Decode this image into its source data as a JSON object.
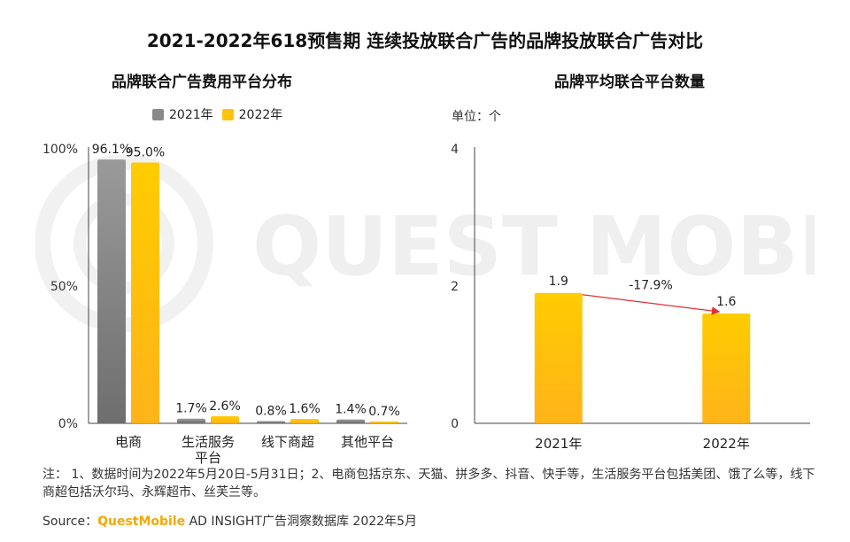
{
  "title": "2021-2022年618预售期 连续投放联合广告的品牌投放联合广告对比",
  "watermark_text": "QUEST MOBILE",
  "colors": {
    "y2021": "#8a8a8a",
    "y2022": "#ffc20e"
  },
  "chart_data": [
    {
      "type": "bar",
      "title": "品牌联合广告费用平台分布",
      "categories": [
        "电商",
        "生活服务|平台",
        "线下商超",
        "其他平台"
      ],
      "series": [
        {
          "name": "2021年",
          "values": [
            96.1,
            1.7,
            0.8,
            1.4
          ],
          "labels": [
            "96.1%",
            "1.7%",
            "0.8%",
            "1.4%"
          ]
        },
        {
          "name": "2022年",
          "values": [
            95.0,
            2.6,
            1.6,
            0.7
          ],
          "labels": [
            "95.0%",
            "2.6%",
            "1.6%",
            "0.7%"
          ]
        }
      ],
      "ylim": [
        0,
        100
      ],
      "yticks": [
        {
          "value": 0,
          "label": "0%"
        },
        {
          "value": 50,
          "label": "50%"
        },
        {
          "value": 100,
          "label": "100%"
        }
      ],
      "legend": "top"
    },
    {
      "type": "bar",
      "title": "品牌平均联合平台数量",
      "unit": "单位：个",
      "categories": [
        "2021年",
        "2022年"
      ],
      "values": [
        1.9,
        1.6
      ],
      "labels": [
        "1.9",
        "1.6"
      ],
      "ylim": [
        0,
        4
      ],
      "yticks": [
        {
          "value": 0,
          "label": "0"
        },
        {
          "value": 2,
          "label": "2"
        },
        {
          "value": 4,
          "label": "4"
        }
      ],
      "annotation": "-17.9%"
    }
  ],
  "note": "注：  1、数据时间为2022年5月20日-5月31日；2、电商包括京东、天猫、拼多多、抖音、快手等，生活服务平台包括美团、饿了么等，线下商超包括沃尔玛、永辉超市、丝芙兰等。",
  "source": {
    "prefix": "Source：",
    "brand": "QuestMobile",
    "rest": " AD INSIGHT广告洞察数据库 2022年5月"
  }
}
